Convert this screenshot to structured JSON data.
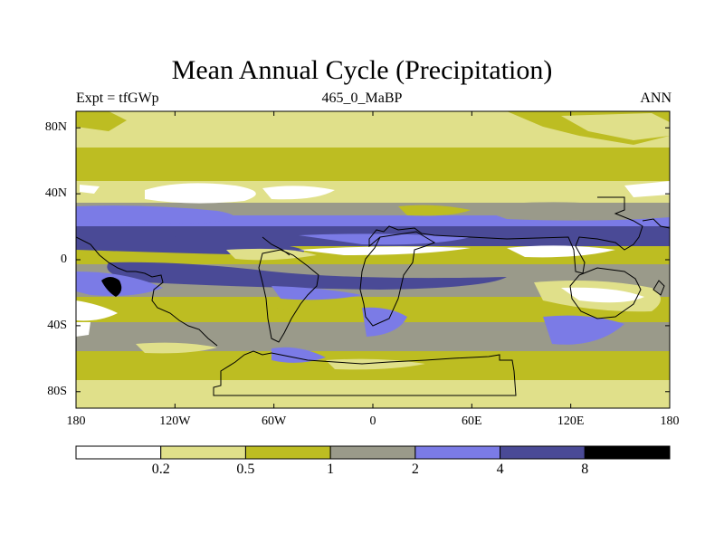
{
  "title": "Mean Annual Cycle (Precipitation)",
  "subtitle_left": "Expt = tfGWp",
  "subtitle_center": "465_0_MaBP",
  "subtitle_right": "ANN",
  "lat_ticks": [
    {
      "label": "80N",
      "lat": 80
    },
    {
      "label": "40N",
      "lat": 40
    },
    {
      "label": "0",
      "lat": 0
    },
    {
      "label": "40S",
      "lat": -40
    },
    {
      "label": "80S",
      "lat": -80
    }
  ],
  "lon_ticks": [
    {
      "label": "180",
      "lon": -180
    },
    {
      "label": "120W",
      "lon": -120
    },
    {
      "label": "60W",
      "lon": -60
    },
    {
      "label": "0",
      "lon": 0
    },
    {
      "label": "60E",
      "lon": 60
    },
    {
      "label": "120E",
      "lon": 120
    },
    {
      "label": "180",
      "lon": 180
    }
  ],
  "colorbar": {
    "levels": [
      "0.2",
      "0.5",
      "1",
      "2",
      "4",
      "8"
    ],
    "colors": [
      "#ffffff",
      "#e0e08a",
      "#bdbd22",
      "#9a9a8a",
      "#7b7be6",
      "#4a4a96",
      "#000000"
    ]
  },
  "map_palette": {
    "white": "#ffffff",
    "light_yellow": "#e0e08a",
    "olive": "#bdbd22",
    "gray": "#9a9a8a",
    "blue": "#7b7be6",
    "dark_blue": "#4a4a96",
    "black": "#000000"
  }
}
